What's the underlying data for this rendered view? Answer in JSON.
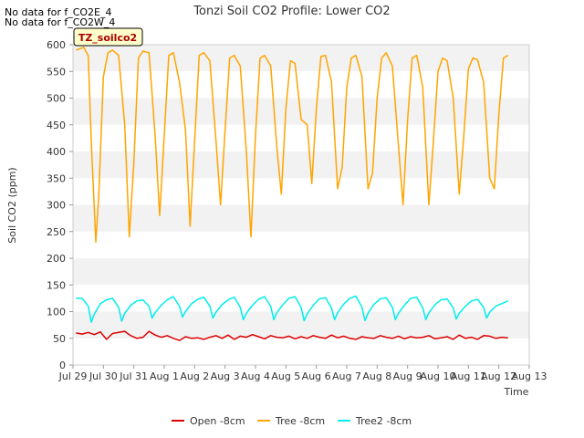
{
  "notes": [
    "No data for f_CO2E_4",
    "No data for f_CO2W_4"
  ],
  "chart_data": {
    "type": "line",
    "title": "Tonzi Soil CO2 Profile: Lower CO2",
    "xlabel": "Time",
    "ylabel": "Soil CO2 (ppm)",
    "ylim": [
      0,
      600
    ],
    "yticks": [
      0,
      50,
      100,
      150,
      200,
      250,
      300,
      350,
      400,
      450,
      500,
      550,
      600
    ],
    "xlim": [
      0,
      15
    ],
    "xticks": [
      {
        "value": 0,
        "label": "Jul 29"
      },
      {
        "value": 1,
        "label": "Jul 30"
      },
      {
        "value": 2,
        "label": "Jul 31"
      },
      {
        "value": 3,
        "label": "Aug 1"
      },
      {
        "value": 4,
        "label": "Aug 2"
      },
      {
        "value": 5,
        "label": "Aug 3"
      },
      {
        "value": 6,
        "label": "Aug 4"
      },
      {
        "value": 7,
        "label": "Aug 5"
      },
      {
        "value": 8,
        "label": "Aug 6"
      },
      {
        "value": 9,
        "label": "Aug 7"
      },
      {
        "value": 10,
        "label": "Aug 8"
      },
      {
        "value": 11,
        "label": "Aug 9"
      },
      {
        "value": 12,
        "label": "Aug 10"
      },
      {
        "value": 13,
        "label": "Aug 11"
      },
      {
        "value": 14,
        "label": "Aug 12"
      },
      {
        "value": 15,
        "label": "Aug 13"
      }
    ],
    "legend_box": "TZ_soilco2",
    "legend_position": "bottom",
    "grid": "alternating horizontal bands",
    "series": [
      {
        "name": "Open -8cm",
        "color": "#dd0000",
        "x": [
          0.1,
          0.3,
          0.5,
          0.7,
          0.9,
          1.1,
          1.3,
          1.5,
          1.7,
          1.9,
          2.1,
          2.3,
          2.5,
          2.7,
          2.9,
          3.1,
          3.3,
          3.5,
          3.7,
          3.9,
          4.1,
          4.3,
          4.5,
          4.7,
          4.9,
          5.1,
          5.3,
          5.5,
          5.7,
          5.9,
          6.1,
          6.3,
          6.5,
          6.7,
          6.9,
          7.1,
          7.3,
          7.5,
          7.7,
          7.9,
          8.1,
          8.3,
          8.5,
          8.7,
          8.9,
          9.1,
          9.3,
          9.5,
          9.7,
          9.9,
          10.1,
          10.3,
          10.5,
          10.7,
          10.9,
          11.1,
          11.3,
          11.5,
          11.7,
          11.9,
          12.1,
          12.3,
          12.5,
          12.7,
          12.9,
          13.1,
          13.3,
          13.5,
          13.7,
          13.9,
          14.1,
          14.3
        ],
        "y": [
          60,
          58,
          61,
          57,
          62,
          48,
          59,
          61,
          63,
          55,
          50,
          52,
          63,
          56,
          52,
          55,
          50,
          46,
          53,
          50,
          51,
          48,
          52,
          55,
          50,
          56,
          48,
          54,
          52,
          57,
          53,
          49,
          55,
          52,
          51,
          54,
          49,
          53,
          50,
          55,
          52,
          50,
          56,
          51,
          54,
          50,
          48,
          53,
          51,
          50,
          55,
          52,
          50,
          54,
          49,
          53,
          51,
          52,
          55,
          49,
          51,
          53,
          48,
          56,
          50,
          52,
          48,
          55,
          54,
          50,
          52,
          51
        ]
      },
      {
        "name": "Tree -8cm",
        "color": "#ffa500",
        "x": [
          0.1,
          0.2,
          0.35,
          0.5,
          0.6,
          0.75,
          0.85,
          1.0,
          1.15,
          1.3,
          1.5,
          1.7,
          1.85,
          2.0,
          2.15,
          2.3,
          2.5,
          2.7,
          2.85,
          3.0,
          3.15,
          3.3,
          3.5,
          3.7,
          3.85,
          4.0,
          4.15,
          4.3,
          4.5,
          4.7,
          4.85,
          5.0,
          5.15,
          5.3,
          5.5,
          5.7,
          5.85,
          6.0,
          6.15,
          6.3,
          6.5,
          6.7,
          6.85,
          7.0,
          7.15,
          7.3,
          7.5,
          7.7,
          7.85,
          8.0,
          8.15,
          8.3,
          8.5,
          8.7,
          8.85,
          9.0,
          9.15,
          9.3,
          9.5,
          9.7,
          9.85,
          10.0,
          10.15,
          10.3,
          10.5,
          10.7,
          10.85,
          11.0,
          11.15,
          11.3,
          11.5,
          11.7,
          11.85,
          12.0,
          12.15,
          12.3,
          12.5,
          12.7,
          12.85,
          13.0,
          13.15,
          13.3,
          13.5,
          13.7,
          13.85,
          14.0,
          14.15,
          14.3
        ],
        "y": [
          590,
          592,
          595,
          580,
          420,
          230,
          320,
          540,
          585,
          590,
          580,
          450,
          240,
          380,
          575,
          588,
          585,
          430,
          280,
          430,
          580,
          585,
          530,
          440,
          260,
          420,
          580,
          585,
          570,
          420,
          300,
          440,
          575,
          580,
          560,
          400,
          240,
          430,
          575,
          580,
          560,
          410,
          320,
          480,
          570,
          565,
          460,
          450,
          340,
          480,
          578,
          580,
          530,
          330,
          370,
          520,
          575,
          580,
          540,
          330,
          360,
          500,
          575,
          585,
          560,
          410,
          300,
          460,
          575,
          580,
          520,
          300,
          420,
          550,
          575,
          570,
          500,
          320,
          430,
          555,
          575,
          572,
          530,
          350,
          330,
          470,
          575,
          580
        ]
      },
      {
        "name": "Tree2 -8cm",
        "color": "#00eeee",
        "x": [
          0.1,
          0.3,
          0.5,
          0.6,
          0.7,
          0.9,
          1.1,
          1.3,
          1.5,
          1.6,
          1.7,
          1.9,
          2.1,
          2.3,
          2.5,
          2.6,
          2.7,
          2.9,
          3.1,
          3.3,
          3.5,
          3.6,
          3.7,
          3.9,
          4.1,
          4.3,
          4.5,
          4.6,
          4.7,
          4.9,
          5.1,
          5.3,
          5.5,
          5.6,
          5.7,
          5.9,
          6.1,
          6.3,
          6.5,
          6.6,
          6.7,
          6.9,
          7.1,
          7.3,
          7.5,
          7.6,
          7.7,
          7.9,
          8.1,
          8.3,
          8.5,
          8.6,
          8.7,
          8.9,
          9.1,
          9.3,
          9.5,
          9.6,
          9.7,
          9.9,
          10.1,
          10.3,
          10.5,
          10.6,
          10.7,
          10.9,
          11.1,
          11.3,
          11.5,
          11.6,
          11.7,
          11.9,
          12.1,
          12.3,
          12.5,
          12.6,
          12.7,
          12.9,
          13.1,
          13.3,
          13.5,
          13.6,
          13.7,
          13.9,
          14.1,
          14.3
        ],
        "y": [
          125,
          125,
          110,
          80,
          95,
          115,
          122,
          125,
          108,
          82,
          97,
          112,
          120,
          122,
          110,
          88,
          98,
          112,
          122,
          128,
          110,
          90,
          100,
          115,
          123,
          127,
          110,
          88,
          99,
          113,
          122,
          127,
          108,
          85,
          97,
          112,
          123,
          128,
          110,
          85,
          98,
          113,
          125,
          128,
          108,
          83,
          96,
          112,
          124,
          126,
          107,
          85,
          98,
          114,
          125,
          129,
          108,
          83,
          97,
          114,
          124,
          126,
          108,
          85,
          97,
          112,
          125,
          127,
          107,
          85,
          98,
          113,
          122,
          124,
          107,
          86,
          97,
          110,
          120,
          123,
          108,
          88,
          99,
          110,
          115,
          120
        ]
      }
    ]
  }
}
